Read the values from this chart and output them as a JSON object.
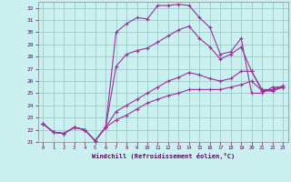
{
  "xlabel": "Windchill (Refroidissement éolien,°C)",
  "background_color": "#caf0f0",
  "grid_color": "#99cccc",
  "line_color": "#993399",
  "xlim": [
    -0.5,
    23.5
  ],
  "ylim": [
    21,
    32.5
  ],
  "xticks": [
    0,
    1,
    2,
    3,
    4,
    5,
    6,
    7,
    8,
    9,
    10,
    11,
    12,
    13,
    14,
    15,
    16,
    17,
    18,
    19,
    20,
    21,
    22,
    23
  ],
  "yticks": [
    21,
    22,
    23,
    24,
    25,
    26,
    27,
    28,
    29,
    30,
    31,
    32
  ],
  "series": [
    [
      22.5,
      21.8,
      21.7,
      22.2,
      22.0,
      21.1,
      22.2,
      30.0,
      30.7,
      31.2,
      31.1,
      32.2,
      32.2,
      32.3,
      32.2,
      31.2,
      30.4,
      28.2,
      28.4,
      29.5,
      25.0,
      25.0,
      25.5,
      25.5
    ],
    [
      22.5,
      21.8,
      21.7,
      22.2,
      22.0,
      21.1,
      22.2,
      27.2,
      28.2,
      28.5,
      28.7,
      29.2,
      29.7,
      30.2,
      30.5,
      29.5,
      28.8,
      27.8,
      28.2,
      28.8,
      26.8,
      25.3,
      25.3,
      25.6
    ],
    [
      22.5,
      21.8,
      21.7,
      22.2,
      22.0,
      21.1,
      22.2,
      23.5,
      24.0,
      24.5,
      25.0,
      25.5,
      26.0,
      26.3,
      26.7,
      26.5,
      26.2,
      26.0,
      26.2,
      26.8,
      26.8,
      25.2,
      25.2,
      25.5
    ],
    [
      22.5,
      21.8,
      21.7,
      22.2,
      22.0,
      21.1,
      22.2,
      22.8,
      23.2,
      23.7,
      24.2,
      24.5,
      24.8,
      25.0,
      25.3,
      25.3,
      25.3,
      25.3,
      25.5,
      25.7,
      26.0,
      25.2,
      25.2,
      25.5
    ]
  ]
}
